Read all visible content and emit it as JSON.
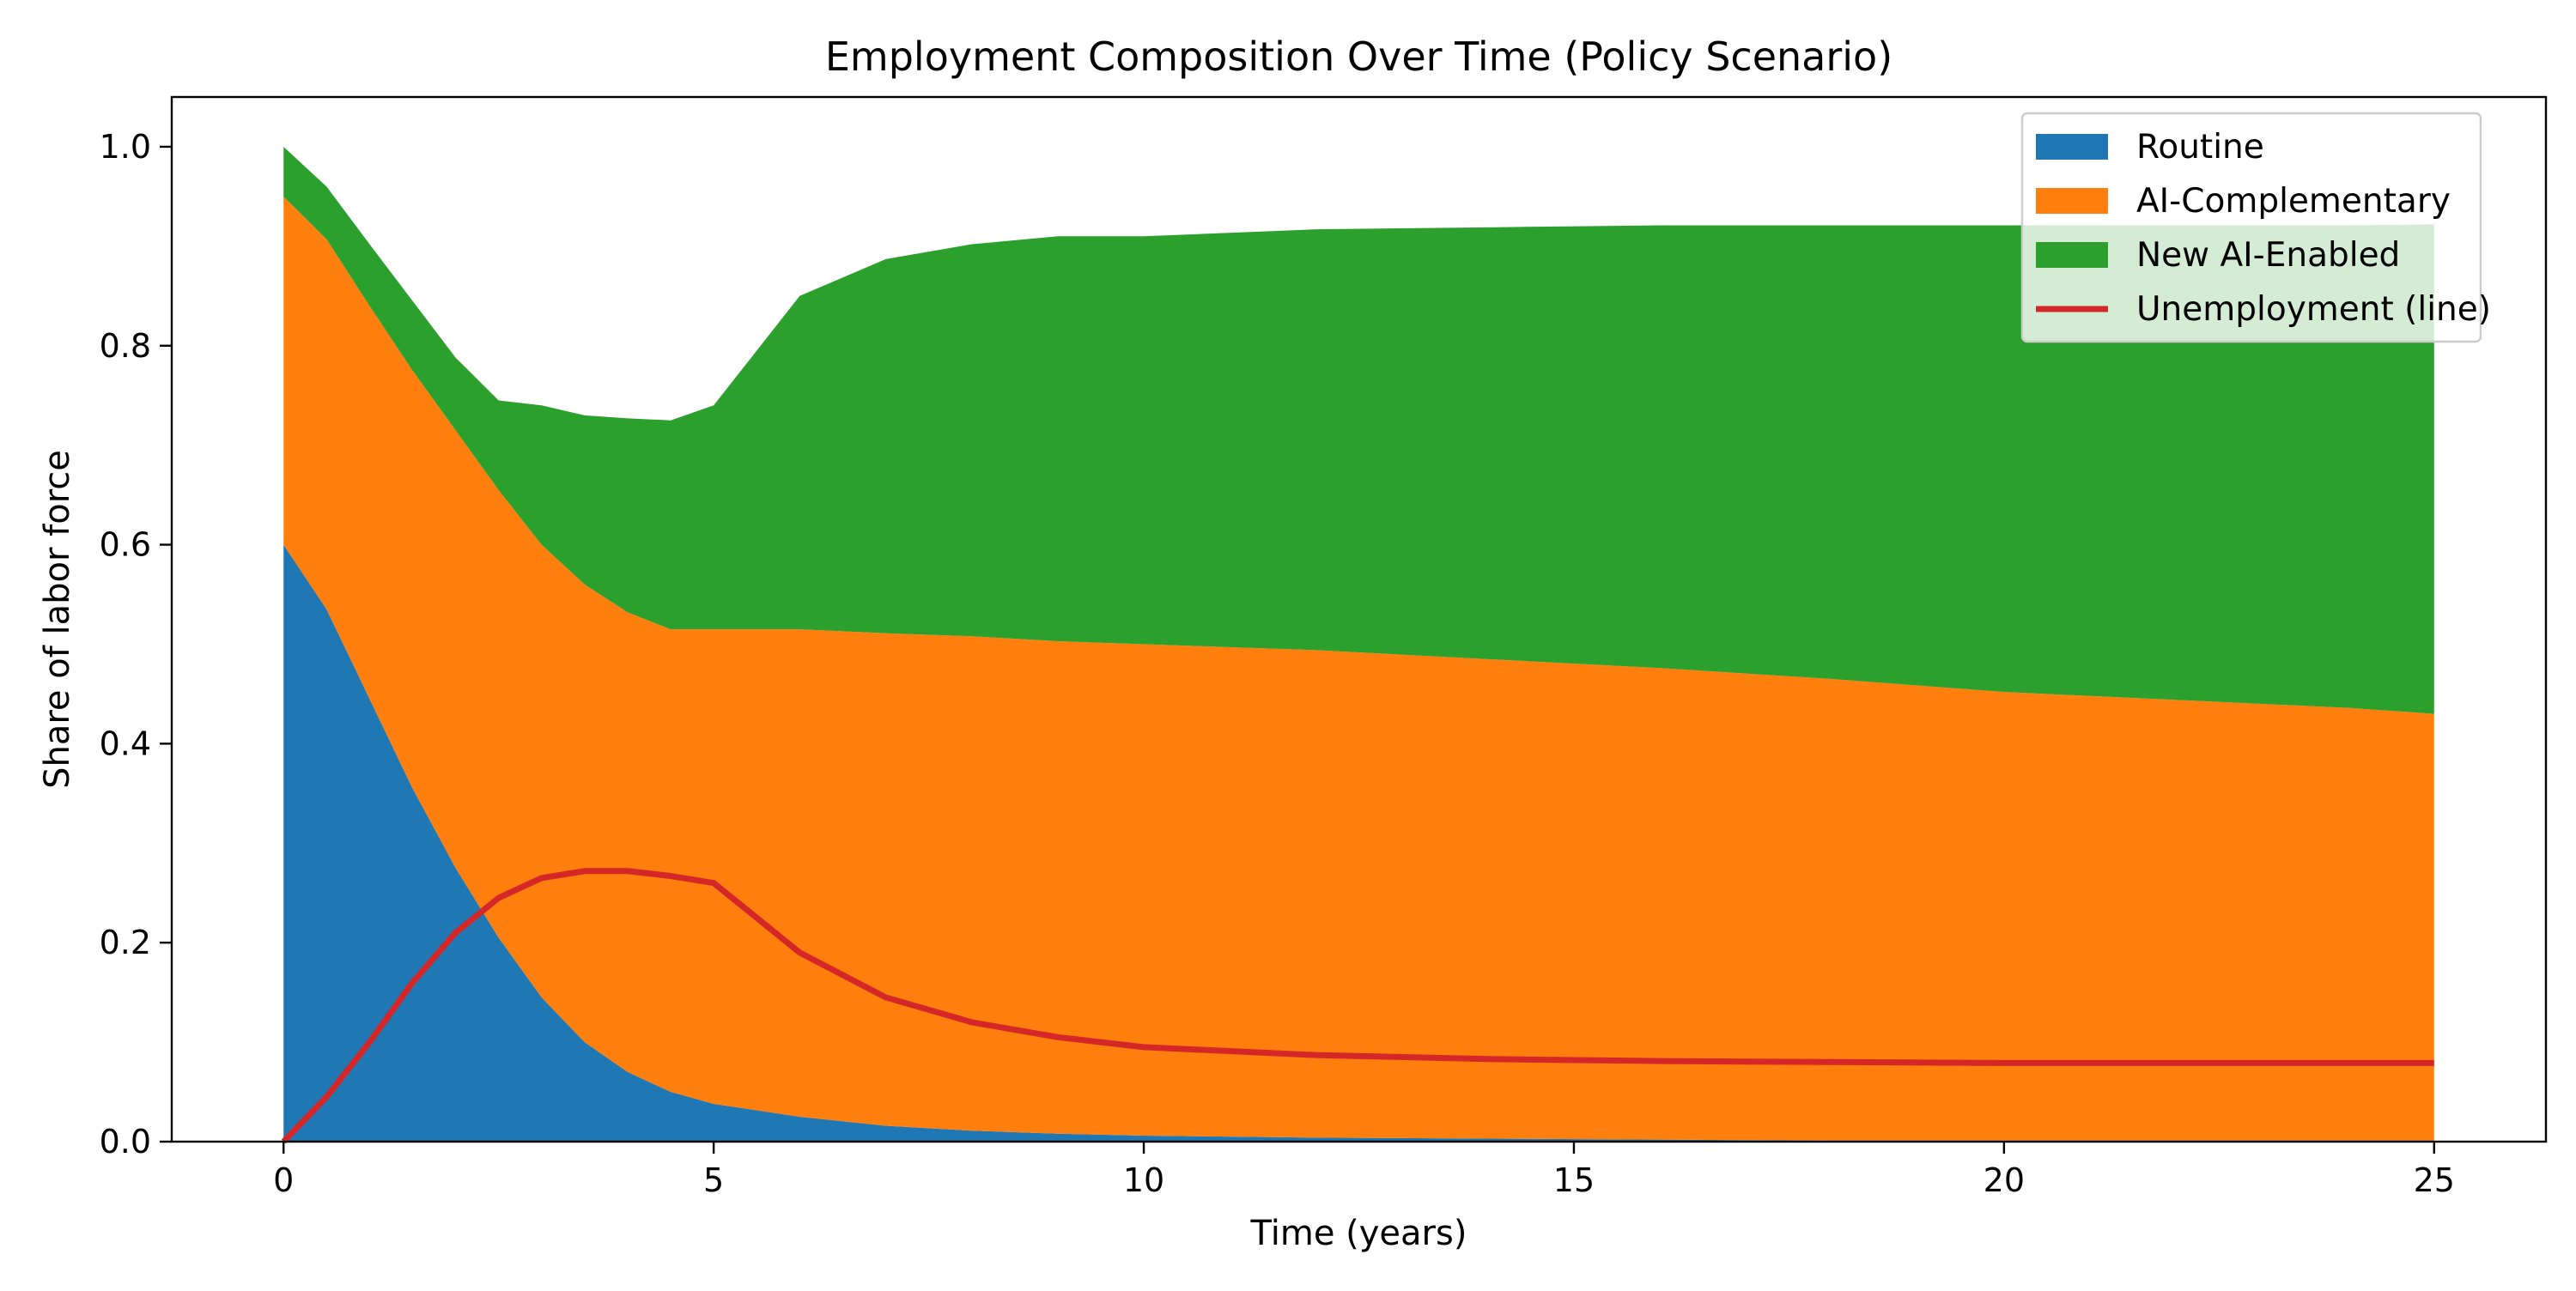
{
  "chart_data": {
    "type": "area",
    "stacked": true,
    "title": "Employment Composition Over Time (Policy Scenario)",
    "xlabel": "Time (years)",
    "ylabel": "Share of labor force",
    "xlim": [
      -1.3,
      26.3
    ],
    "ylim": [
      0,
      1.05
    ],
    "xticks": [
      0,
      5,
      10,
      15,
      20,
      25
    ],
    "yticks": [
      0.0,
      0.2,
      0.4,
      0.6,
      0.8,
      1.0
    ],
    "xtick_labels": [
      "0",
      "5",
      "10",
      "15",
      "20",
      "25"
    ],
    "ytick_labels": [
      "0.0",
      "0.2",
      "0.4",
      "0.6",
      "0.8",
      "1.0"
    ],
    "grid": false,
    "legend_position": "top-right",
    "x": [
      0,
      0.5,
      1,
      1.5,
      2,
      2.5,
      3,
      3.5,
      4,
      4.5,
      5,
      6,
      7,
      8,
      9,
      10,
      12,
      14,
      16,
      18,
      20,
      22,
      24,
      25
    ],
    "series": [
      {
        "name": "Routine",
        "kind": "area",
        "color": "#1f77b4",
        "values": [
          0.6,
          0.535,
          0.445,
          0.355,
          0.275,
          0.205,
          0.145,
          0.1,
          0.07,
          0.05,
          0.038,
          0.025,
          0.016,
          0.011,
          0.008,
          0.006,
          0.004,
          0.003,
          0.002,
          0.001,
          0.001,
          0.001,
          0.001,
          0.001
        ]
      },
      {
        "name": "AI-Complementary",
        "kind": "area",
        "color": "#ff7f0e",
        "values": [
          0.35,
          0.372,
          0.395,
          0.42,
          0.44,
          0.45,
          0.455,
          0.46,
          0.462,
          0.465,
          0.477,
          0.49,
          0.495,
          0.497,
          0.495,
          0.494,
          0.49,
          0.482,
          0.474,
          0.464,
          0.451,
          0.443,
          0.435,
          0.429
        ]
      },
      {
        "name": "New AI-Enabled",
        "kind": "area",
        "color": "#2ca02c",
        "values": [
          0.05,
          0.053,
          0.062,
          0.07,
          0.073,
          0.09,
          0.14,
          0.17,
          0.195,
          0.21,
          0.225,
          0.335,
          0.376,
          0.394,
          0.407,
          0.41,
          0.423,
          0.434,
          0.445,
          0.456,
          0.469,
          0.477,
          0.485,
          0.492
        ]
      },
      {
        "name": "Unemployment (line)",
        "kind": "line",
        "color": "#d62728",
        "values": [
          0.0,
          0.045,
          0.1,
          0.16,
          0.21,
          0.245,
          0.265,
          0.272,
          0.272,
          0.267,
          0.26,
          0.19,
          0.145,
          0.12,
          0.105,
          0.095,
          0.087,
          0.083,
          0.081,
          0.08,
          0.079,
          0.079,
          0.079,
          0.079
        ]
      }
    ]
  }
}
